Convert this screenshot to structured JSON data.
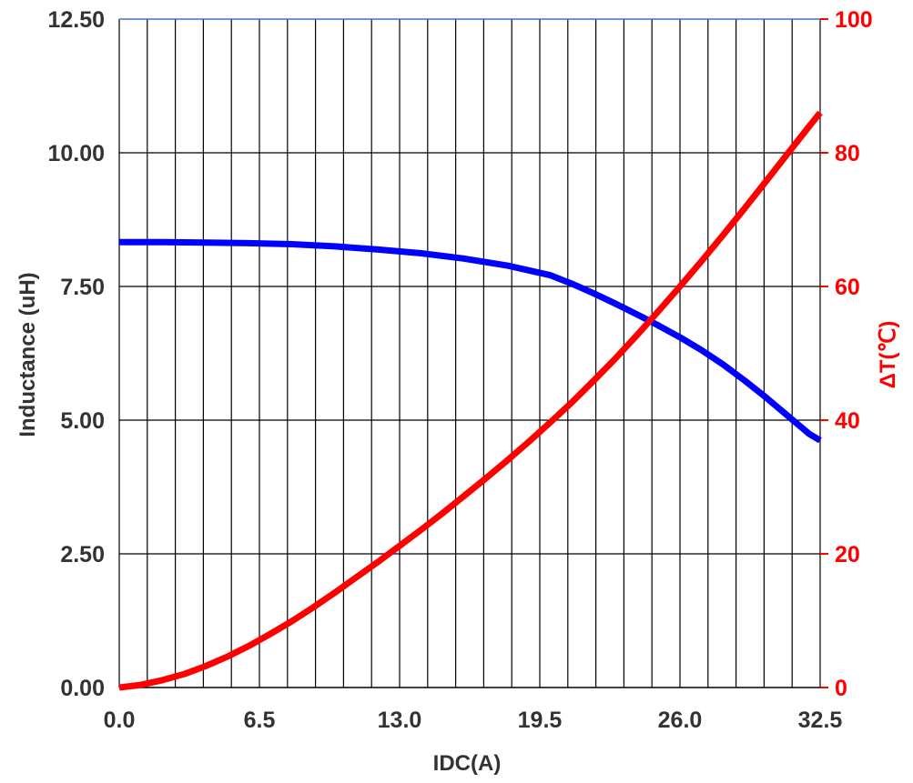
{
  "chart_data": {
    "type": "line",
    "title": "",
    "xlabel": "IDC(A)",
    "ylabel": "Inductance  (uH)",
    "y2label": "ΔT(℃)",
    "xlim": [
      0,
      32.5
    ],
    "ylim": [
      0,
      12.5
    ],
    "y2lim": [
      0,
      100
    ],
    "x_ticks": [
      "0.0",
      "6.5",
      "13.0",
      "19.5",
      "26.0",
      "32.5"
    ],
    "y_ticks": [
      "0.00",
      "2.50",
      "5.00",
      "7.50",
      "10.00",
      "12.50"
    ],
    "y2_ticks": [
      "0",
      "20",
      "40",
      "60",
      "80",
      "100"
    ],
    "grid": true,
    "colors": {
      "inductance": "#0000ff",
      "temperature": "#ff0000",
      "right_axis_text": "#ff0000",
      "left_axis_text": "#333333",
      "grid": "#000000",
      "top_border": "#4472c4"
    },
    "series": [
      {
        "axis": "left",
        "color": "#0000ff",
        "x": [
          0,
          2,
          4,
          6,
          8,
          10,
          12,
          14,
          16,
          18,
          20,
          21,
          22,
          23,
          24,
          25,
          26,
          27,
          28,
          29,
          30,
          31,
          32,
          32.5
        ],
        "y": [
          8.33,
          8.33,
          8.32,
          8.31,
          8.29,
          8.25,
          8.19,
          8.12,
          8.02,
          7.89,
          7.71,
          7.55,
          7.37,
          7.18,
          6.98,
          6.77,
          6.55,
          6.31,
          6.04,
          5.74,
          5.42,
          5.08,
          4.74,
          4.62
        ]
      },
      {
        "axis": "right",
        "color": "#ff0000",
        "x": [
          0,
          1,
          2,
          3,
          4,
          5,
          6,
          7,
          8,
          9,
          10,
          11,
          12,
          13,
          14,
          15,
          16,
          17,
          18,
          19,
          20,
          21,
          22,
          23,
          24,
          25,
          26,
          27,
          28,
          29,
          30,
          31,
          32,
          32.5
        ],
        "y": [
          0,
          0.4,
          1.1,
          2.0,
          3.2,
          4.6,
          6.2,
          8.0,
          9.9,
          12.0,
          14.2,
          16.5,
          18.8,
          21.2,
          23.6,
          26.1,
          28.7,
          31.3,
          34.0,
          36.8,
          39.7,
          42.7,
          45.9,
          49.2,
          52.7,
          56.3,
          60.0,
          63.8,
          67.7,
          71.7,
          75.8,
          79.9,
          84.0,
          86.0
        ]
      }
    ]
  }
}
